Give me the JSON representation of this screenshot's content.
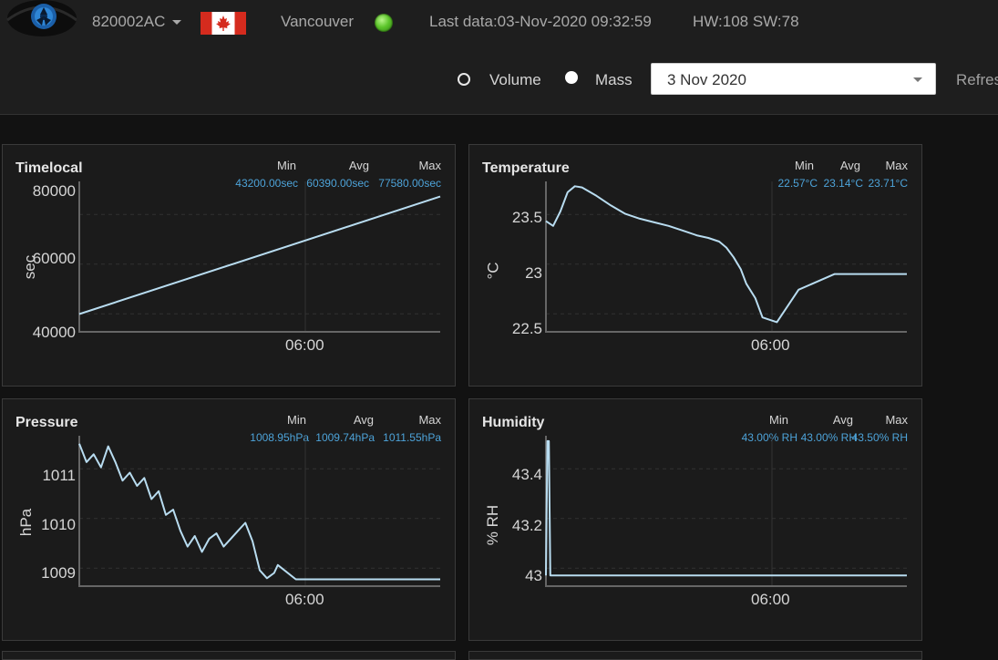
{
  "header": {
    "device_id": "820002AC",
    "city": "Vancouver",
    "last_data": "Last data:03-Nov-2020 09:32:59",
    "hw_sw": "HW:108 SW:78",
    "status_color": "#5cc52a"
  },
  "controls": {
    "volume_label": "Volume",
    "mass_label": "Mass",
    "date_value": "3 Nov 2020",
    "refresh_label": "Refres",
    "selected_mode": "Mass"
  },
  "stats_headers": {
    "min": "Min",
    "avg": "Avg",
    "max": "Max"
  },
  "panels": {
    "timelocal": {
      "title": "Timelocal",
      "unit": "sec",
      "min": "43200.00sec",
      "avg": "60390.00sec",
      "max": "77580.00sec",
      "y_ticks": [
        "80000",
        "60000",
        "40000"
      ],
      "x_tick": "06:00"
    },
    "temperature": {
      "title": "Temperature",
      "unit": "°C",
      "min": "22.57°C",
      "avg": "23.14°C",
      "max": "23.71°C",
      "y_ticks": [
        "23.5",
        "23",
        "22.5"
      ],
      "x_tick": "06:00"
    },
    "pressure": {
      "title": "Pressure",
      "unit": "hPa",
      "min": "1008.95hPa",
      "avg": "1009.74hPa",
      "max": "1011.55hPa",
      "y_ticks": [
        "1011",
        "1010",
        "1009"
      ],
      "x_tick": "06:00"
    },
    "humidity": {
      "title": "Humidity",
      "unit": "% RH",
      "min": "43.00% RH",
      "avg": "43.00% RH",
      "max": "43.50% RH",
      "y_ticks": [
        "43.4",
        "43.2",
        "43"
      ],
      "x_tick": "06:00"
    }
  },
  "chart_data": [
    {
      "type": "line",
      "title": "Timelocal",
      "ylabel": "sec",
      "ylim": [
        38000,
        82000
      ],
      "line_color": "#b8dcf0",
      "series": [
        {
          "x": [
            0,
            1
          ],
          "values": [
            43200,
            77580
          ]
        }
      ]
    },
    {
      "type": "line",
      "title": "Temperature",
      "ylabel": "°C",
      "ylim": [
        22.5,
        23.75
      ],
      "line_color": "#b8dcf0",
      "series": [
        {
          "x": [
            0,
            0.02,
            0.04,
            0.06,
            0.08,
            0.1,
            0.14,
            0.18,
            0.22,
            0.26,
            0.3,
            0.34,
            0.38,
            0.42,
            0.45,
            0.48,
            0.5,
            0.52,
            0.54,
            0.555,
            0.58,
            0.6,
            0.64,
            0.7,
            0.8,
            0.9,
            1
          ],
          "values": [
            23.42,
            23.38,
            23.5,
            23.66,
            23.71,
            23.7,
            23.63,
            23.55,
            23.48,
            23.44,
            23.41,
            23.38,
            23.34,
            23.3,
            23.28,
            23.25,
            23.2,
            23.12,
            23.02,
            22.9,
            22.78,
            22.62,
            22.58,
            22.85,
            22.98,
            22.98,
            22.98
          ]
        }
      ]
    },
    {
      "type": "line",
      "title": "Pressure",
      "ylabel": "hPa",
      "ylim": [
        1008.85,
        1011.7
      ],
      "line_color": "#b8dcf0",
      "series": [
        {
          "x": [
            0,
            0.02,
            0.04,
            0.06,
            0.08,
            0.1,
            0.12,
            0.14,
            0.16,
            0.18,
            0.2,
            0.22,
            0.24,
            0.26,
            0.28,
            0.3,
            0.32,
            0.34,
            0.36,
            0.38,
            0.4,
            0.42,
            0.44,
            0.46,
            0.48,
            0.5,
            0.52,
            0.54,
            0.55,
            0.6,
            0.65,
            0.7,
            1
          ],
          "values": [
            1011.55,
            1011.2,
            1011.35,
            1011.1,
            1011.5,
            1011.2,
            1010.85,
            1011.0,
            1010.75,
            1010.9,
            1010.5,
            1010.65,
            1010.2,
            1010.3,
            1009.9,
            1009.6,
            1009.8,
            1009.5,
            1009.75,
            1009.85,
            1009.6,
            1009.75,
            1009.9,
            1010.05,
            1009.7,
            1009.15,
            1009.0,
            1009.1,
            1009.25,
            1008.98,
            1008.98,
            1008.98,
            1008.98
          ]
        }
      ]
    },
    {
      "type": "line",
      "title": "Humidity",
      "ylabel": "% RH",
      "ylim": [
        42.96,
        43.52
      ],
      "line_color": "#b8dcf0",
      "series": [
        {
          "x": [
            0,
            0.004,
            0.008,
            0.012,
            1
          ],
          "values": [
            43.0,
            43.5,
            43.5,
            43.0,
            43.0
          ]
        }
      ]
    }
  ]
}
